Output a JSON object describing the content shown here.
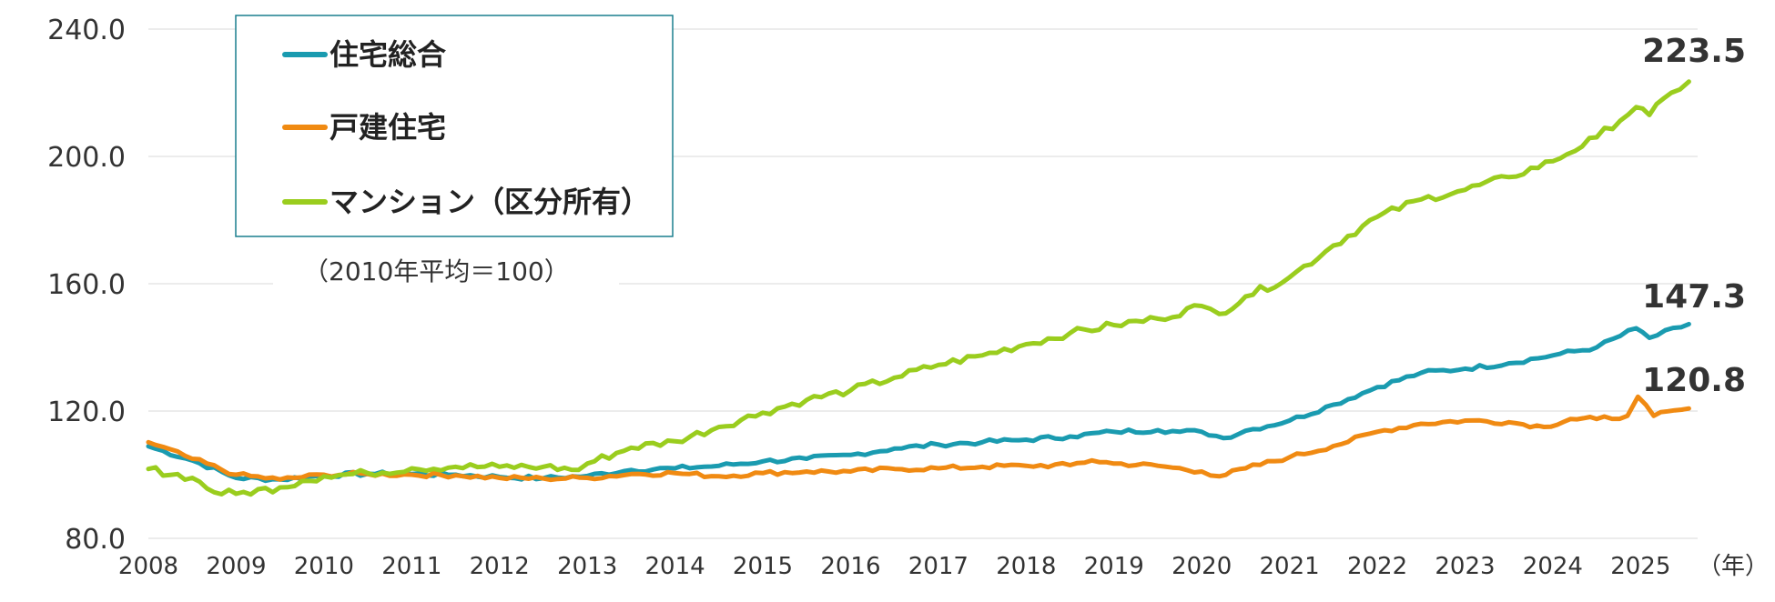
{
  "chart_data": {
    "type": "line",
    "note": "（2010年平均＝100）",
    "x_unit": "（年）",
    "x_ticks": [
      "2008",
      "2009",
      "2010",
      "2011",
      "2012",
      "2013",
      "2014",
      "2015",
      "2016",
      "2017",
      "2018",
      "2019",
      "2020",
      "2021",
      "2022",
      "2023",
      "2024",
      "2025"
    ],
    "y_ticks": [
      "80.0",
      "120.0",
      "160.0",
      "200.0",
      "240.0"
    ],
    "ylim": [
      80,
      240
    ],
    "xlim": [
      2008,
      2025.65
    ],
    "grid": "horizontal",
    "legend_position": "top-left",
    "series": [
      {
        "name": "住宅総合",
        "color": "#1a9bb0",
        "end_label": "147.3",
        "points": [
          [
            2008.0,
            108.9
          ],
          [
            2008.5,
            104.5
          ],
          [
            2009.0,
            99.0
          ],
          [
            2009.5,
            98.5
          ],
          [
            2010.0,
            99.8
          ],
          [
            2010.5,
            100.3
          ],
          [
            2011.0,
            100.2
          ],
          [
            2011.5,
            100.0
          ],
          [
            2012.0,
            99.3
          ],
          [
            2012.5,
            98.9
          ],
          [
            2013.0,
            99.6
          ],
          [
            2013.5,
            101.5
          ],
          [
            2014.0,
            102.0
          ],
          [
            2014.5,
            102.8
          ],
          [
            2015.0,
            104.2
          ],
          [
            2015.5,
            105.0
          ],
          [
            2016.0,
            106.2
          ],
          [
            2016.5,
            108.2
          ],
          [
            2017.0,
            109.5
          ],
          [
            2017.5,
            110.2
          ],
          [
            2018.0,
            111.0
          ],
          [
            2018.5,
            112.0
          ],
          [
            2019.0,
            113.5
          ],
          [
            2019.5,
            114.0
          ],
          [
            2019.75,
            113.5
          ],
          [
            2020.0,
            113.5
          ],
          [
            2020.25,
            111.5
          ],
          [
            2020.5,
            113.8
          ],
          [
            2021.0,
            117.0
          ],
          [
            2021.5,
            122.0
          ],
          [
            2022.0,
            127.5
          ],
          [
            2022.5,
            132.0
          ],
          [
            2023.0,
            133.3
          ],
          [
            2023.5,
            135.0
          ],
          [
            2024.0,
            137.5
          ],
          [
            2024.5,
            140.0
          ],
          [
            2024.95,
            146.0
          ],
          [
            2025.1,
            143.0
          ],
          [
            2025.55,
            147.3
          ]
        ]
      },
      {
        "name": "戸建住宅",
        "color": "#f08a12",
        "end_label": "120.8",
        "points": [
          [
            2008.0,
            110.2
          ],
          [
            2008.5,
            105.0
          ],
          [
            2009.0,
            100.0
          ],
          [
            2009.5,
            98.5
          ],
          [
            2010.0,
            100.0
          ],
          [
            2010.5,
            100.2
          ],
          [
            2011.0,
            100.0
          ],
          [
            2011.5,
            99.8
          ],
          [
            2012.0,
            99.0
          ],
          [
            2012.5,
            98.8
          ],
          [
            2013.0,
            99.0
          ],
          [
            2013.5,
            100.2
          ],
          [
            2014.0,
            100.5
          ],
          [
            2014.5,
            99.5
          ],
          [
            2015.0,
            100.5
          ],
          [
            2015.5,
            101.0
          ],
          [
            2016.0,
            101.0
          ],
          [
            2016.5,
            101.8
          ],
          [
            2017.0,
            102.0
          ],
          [
            2017.5,
            102.5
          ],
          [
            2018.0,
            102.8
          ],
          [
            2018.5,
            103.0
          ],
          [
            2018.75,
            104.5
          ],
          [
            2019.0,
            103.5
          ],
          [
            2019.5,
            102.8
          ],
          [
            2020.0,
            101.0
          ],
          [
            2020.2,
            99.5
          ],
          [
            2020.5,
            102.0
          ],
          [
            2021.0,
            105.5
          ],
          [
            2021.5,
            109.0
          ],
          [
            2022.0,
            113.5
          ],
          [
            2022.5,
            116.0
          ],
          [
            2023.0,
            117.0
          ],
          [
            2023.5,
            116.5
          ],
          [
            2023.9,
            115.0
          ],
          [
            2024.2,
            117.5
          ],
          [
            2024.5,
            117.5
          ],
          [
            2024.85,
            118.5
          ],
          [
            2024.97,
            124.5
          ],
          [
            2025.15,
            118.5
          ],
          [
            2025.55,
            120.8
          ]
        ]
      },
      {
        "name": "マンション（区分所有）",
        "color": "#9acd1e",
        "end_label": "223.5",
        "points": [
          [
            2008.0,
            101.8
          ],
          [
            2008.5,
            99.0
          ],
          [
            2008.75,
            94.5
          ],
          [
            2009.0,
            94.0
          ],
          [
            2009.5,
            96.0
          ],
          [
            2009.75,
            98.0
          ],
          [
            2010.0,
            99.5
          ],
          [
            2010.5,
            100.5
          ],
          [
            2011.0,
            102.0
          ],
          [
            2011.5,
            102.5
          ],
          [
            2012.0,
            102.5
          ],
          [
            2012.5,
            102.5
          ],
          [
            2012.9,
            101.5
          ],
          [
            2013.0,
            103.5
          ],
          [
            2013.5,
            108.5
          ],
          [
            2014.0,
            110.5
          ],
          [
            2014.5,
            115.0
          ],
          [
            2015.0,
            119.5
          ],
          [
            2015.5,
            123.5
          ],
          [
            2016.0,
            126.5
          ],
          [
            2016.5,
            130.5
          ],
          [
            2017.0,
            134.5
          ],
          [
            2017.5,
            137.5
          ],
          [
            2018.0,
            141.0
          ],
          [
            2018.5,
            144.5
          ],
          [
            2019.0,
            147.0
          ],
          [
            2019.5,
            149.0
          ],
          [
            2020.0,
            153.0
          ],
          [
            2020.2,
            150.5
          ],
          [
            2020.5,
            156.0
          ],
          [
            2021.0,
            162.0
          ],
          [
            2021.5,
            172.0
          ],
          [
            2022.0,
            181.0
          ],
          [
            2022.5,
            186.5
          ],
          [
            2023.0,
            189.5
          ],
          [
            2023.5,
            193.5
          ],
          [
            2024.0,
            198.5
          ],
          [
            2024.5,
            206.0
          ],
          [
            2024.95,
            215.5
          ],
          [
            2025.1,
            213.0
          ],
          [
            2025.35,
            220.0
          ],
          [
            2025.55,
            223.5
          ]
        ]
      }
    ]
  }
}
